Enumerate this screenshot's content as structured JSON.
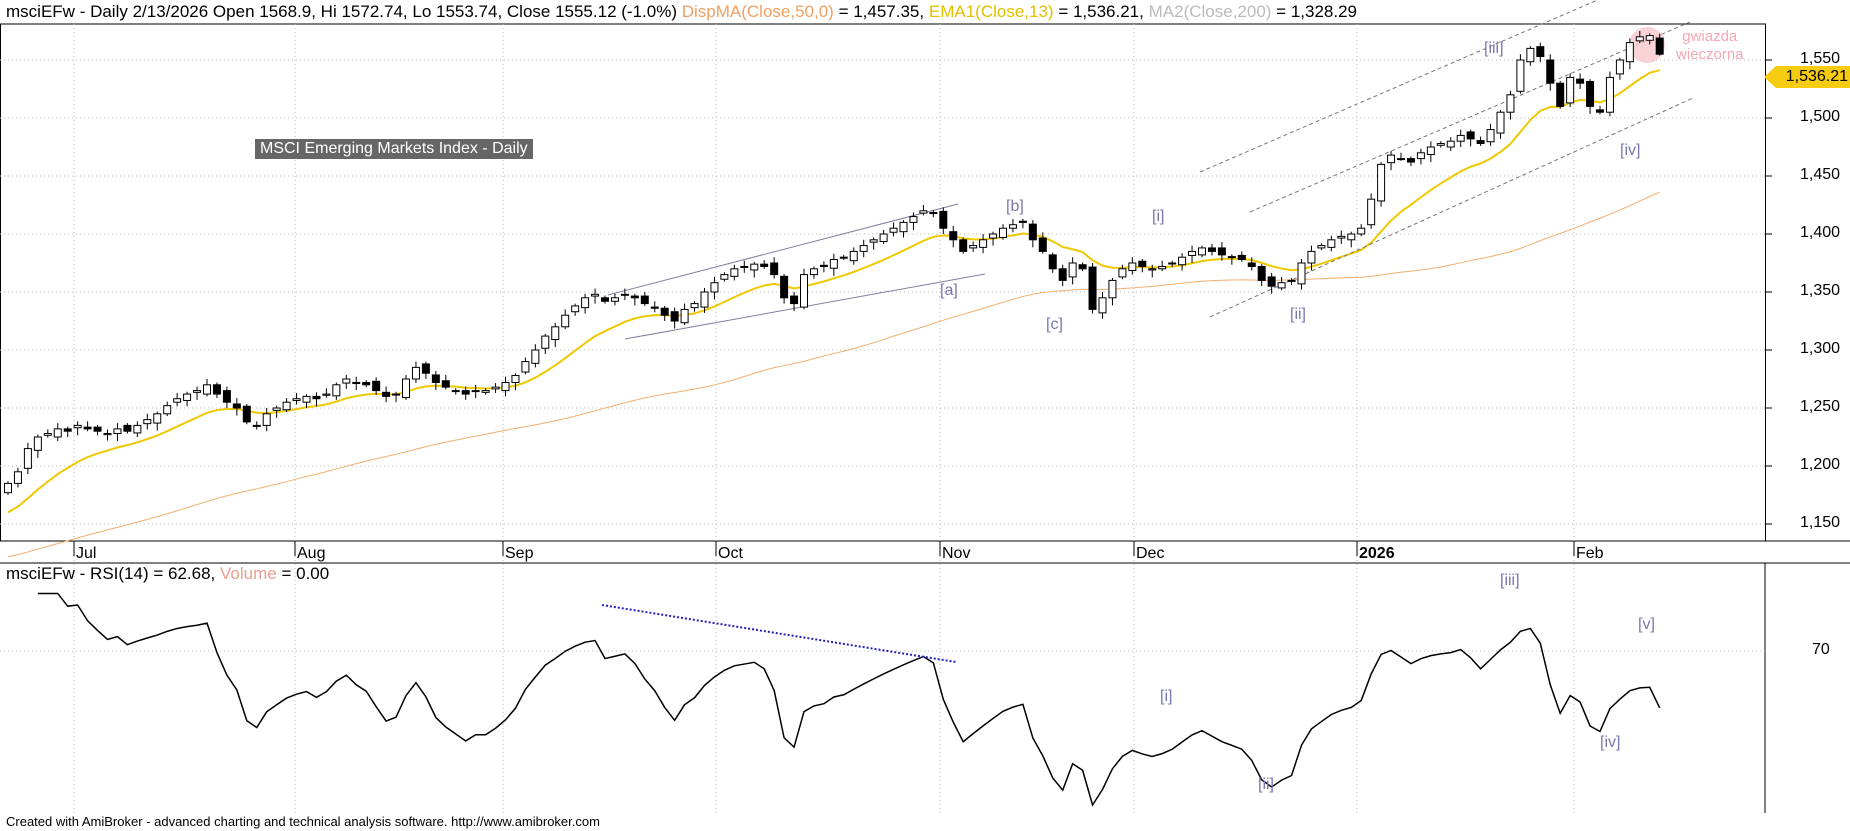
{
  "header": {
    "symbol": "msciEFw",
    "info": "- Daily 2/13/2026 Open 1568.9, Hi 1572.74, Lo 1553.74, Close 1555.12 (-1.0%)",
    "ma50_label": "DispMA(Close,50,0)",
    "ma50_value": "= 1,457.35,",
    "ema_label": "EMA1(Close,13)",
    "ema_value": "= 1,536.21,",
    "ma200_label": "MA2(Close,200)",
    "ma200_value": "= 1,328.29"
  },
  "title_box": "MSCI Emerging Markets Index - Daily",
  "annotation": {
    "line1": "gwiazda",
    "line2": "wieczorna"
  },
  "current_price_tag": "1,536.21",
  "rsi_header": {
    "text": "msciEFw - RSI(14) = 62.68,",
    "volume_label": "Volume",
    "volume_value": "= 0.00"
  },
  "footer": "Created with AmiBroker - advanced charting and technical analysis software. http://www.amibroker.com",
  "colors": {
    "ema": "#f0c800",
    "ma50": "#f0b070",
    "rsi": "#000000",
    "wave_label": "#7878b0"
  },
  "chart_data": [
    {
      "type": "candlestick",
      "title": "MSCI Emerging Markets Index - Daily",
      "y_ticks": [
        "1,550",
        "1,500",
        "1,450",
        "1,400",
        "1,350",
        "1,300",
        "1,250",
        "1,200",
        "1,150"
      ],
      "ylim": [
        1140,
        1580
      ],
      "x_ticks": [
        "Jul",
        "Aug",
        "Sep",
        "Oct",
        "Nov",
        "Dec",
        "2026",
        "Feb"
      ],
      "wave_labels": {
        "iii": "[iii]",
        "iv": "[iv]",
        "i": "[i]",
        "ii": "[ii]",
        "a": "[a]",
        "b": "[b]",
        "c": "[c]"
      },
      "close": [
        1185,
        1195,
        1215,
        1225,
        1228,
        1232,
        1230,
        1235,
        1232,
        1230,
        1228,
        1232,
        1230,
        1235,
        1240,
        1245,
        1252,
        1258,
        1262,
        1265,
        1270,
        1262,
        1255,
        1250,
        1238,
        1235,
        1245,
        1250,
        1255,
        1258,
        1260,
        1258,
        1262,
        1270,
        1275,
        1272,
        1270,
        1265,
        1260,
        1262,
        1275,
        1285,
        1280,
        1272,
        1268,
        1265,
        1262,
        1265,
        1265,
        1268,
        1272,
        1278,
        1290,
        1300,
        1312,
        1320,
        1330,
        1338,
        1345,
        1348,
        1342,
        1345,
        1348,
        1345,
        1340,
        1336,
        1330,
        1325,
        1335,
        1340,
        1350,
        1358,
        1365,
        1370,
        1372,
        1374,
        1372,
        1365,
        1345,
        1340,
        1365,
        1370,
        1372,
        1378,
        1380,
        1385,
        1390,
        1395,
        1400,
        1405,
        1410,
        1415,
        1420,
        1418,
        1405,
        1395,
        1385,
        1390,
        1395,
        1400,
        1405,
        1408,
        1410,
        1395,
        1385,
        1370,
        1360,
        1375,
        1370,
        1335,
        1345,
        1360,
        1370,
        1375,
        1372,
        1370,
        1372,
        1375,
        1380,
        1385,
        1388,
        1385,
        1382,
        1380,
        1378,
        1372,
        1360,
        1355,
        1358,
        1360,
        1375,
        1385,
        1390,
        1395,
        1398,
        1400,
        1405,
        1430,
        1460,
        1468,
        1465,
        1462,
        1470,
        1475,
        1478,
        1480,
        1485,
        1482,
        1478,
        1490,
        1505,
        1520,
        1550,
        1560,
        1553,
        1530,
        1510,
        1535,
        1530,
        1510,
        1505,
        1535,
        1550,
        1565,
        1570,
        1571,
        1555
      ],
      "last_open": 1568.9,
      "last_high": 1572.74,
      "last_low": 1553.74
    },
    {
      "type": "line",
      "title": "RSI(14)",
      "value": "62.68",
      "y_ticks": [
        "70"
      ],
      "wave_labels": {
        "iii": "[iii]",
        "v": "[v]",
        "i": "[i]",
        "ii": "[ii]",
        "iv": "[iv]"
      }
    }
  ]
}
